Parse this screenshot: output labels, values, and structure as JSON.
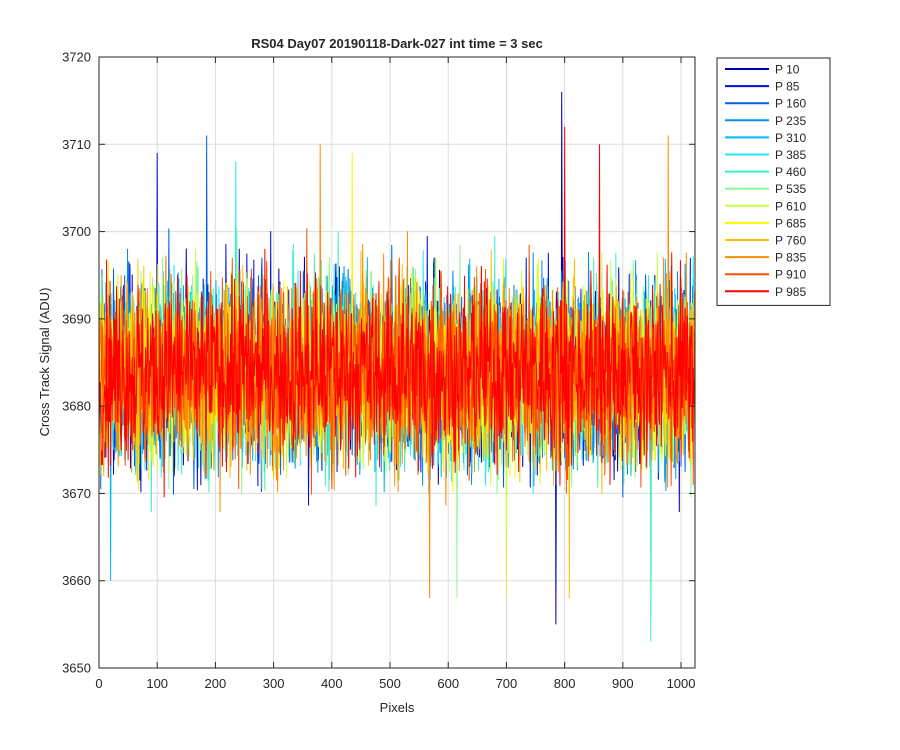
{
  "chart_data": {
    "type": "line",
    "title": "RS04 Day07 20190118-Dark-027 int time = 3 sec",
    "xlabel": "Pixels",
    "ylabel": "Cross Track Signal (ADU)",
    "xlim": [
      0,
      1024
    ],
    "ylim": [
      3650,
      3720
    ],
    "xticks": [
      0,
      100,
      200,
      300,
      400,
      500,
      600,
      700,
      800,
      900,
      1000
    ],
    "yticks": [
      3650,
      3660,
      3670,
      3680,
      3690,
      3700,
      3710,
      3720
    ],
    "grid": true,
    "legend_position": "outside-top-right",
    "series_mean": 3684,
    "series_noise_sd": 6,
    "series": [
      {
        "name": "P 10",
        "color": "#0000aa",
        "spikes": [
          [
            795,
            3716
          ],
          [
            785,
            3655
          ]
        ]
      },
      {
        "name": "P 85",
        "color": "#0010dd",
        "spikes": [
          [
            100,
            3709
          ]
        ]
      },
      {
        "name": "P 160",
        "color": "#0060e8",
        "spikes": [
          [
            185,
            3711
          ]
        ]
      },
      {
        "name": "P 235",
        "color": "#0090f0",
        "spikes": []
      },
      {
        "name": "P 310",
        "color": "#00b8f8",
        "spikes": [
          [
            20,
            3660
          ]
        ]
      },
      {
        "name": "P 385",
        "color": "#20e8ff",
        "spikes": [
          [
            235,
            3708
          ]
        ]
      },
      {
        "name": "P 460",
        "color": "#40f0c0",
        "spikes": [
          [
            948,
            3653
          ]
        ]
      },
      {
        "name": "P 535",
        "color": "#90f890",
        "spikes": [
          [
            615,
            3658
          ]
        ]
      },
      {
        "name": "P 610",
        "color": "#c8ff40",
        "spikes": [
          [
            700,
            3658
          ]
        ]
      },
      {
        "name": "P 685",
        "color": "#f8f800",
        "spikes": [
          [
            435,
            3709
          ]
        ]
      },
      {
        "name": "P 760",
        "color": "#ffc000",
        "spikes": [
          [
            808,
            3658
          ]
        ]
      },
      {
        "name": "P 835",
        "color": "#ff8c00",
        "spikes": [
          [
            380,
            3710
          ],
          [
            978,
            3711
          ],
          [
            568,
            3658
          ]
        ]
      },
      {
        "name": "P 910",
        "color": "#ff5000",
        "spikes": []
      },
      {
        "name": "P 985",
        "color": "#ff0000",
        "spikes": [
          [
            800,
            3712
          ],
          [
            860,
            3710
          ]
        ]
      }
    ]
  }
}
